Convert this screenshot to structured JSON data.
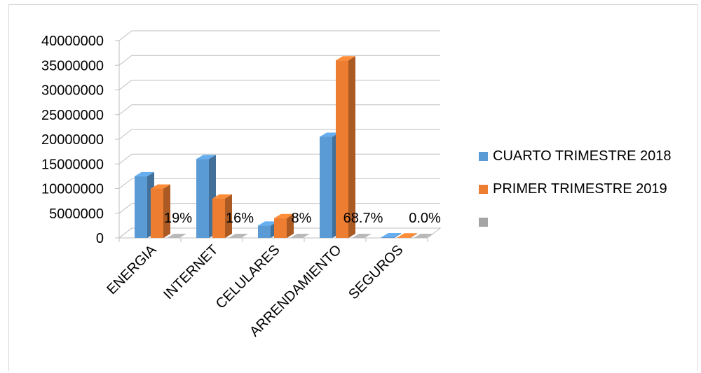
{
  "chart_data": {
    "type": "bar",
    "style": "3d-clustered-column",
    "categories": [
      "ENERGIA",
      "INTERNET",
      "CELULARES",
      "ARRENDAMIENTO",
      "SEGUROS"
    ],
    "series": [
      {
        "name": "CUARTO TRIMESTRE 2018",
        "color": "#5b9bd5",
        "values": [
          12500000,
          16000000,
          2500000,
          20500000,
          150000
        ]
      },
      {
        "name": "PRIMER TRIMESTRE 2019",
        "color": "#ed7d31",
        "values": [
          10000000,
          8000000,
          4000000,
          36000000,
          100000
        ]
      },
      {
        "name": "",
        "color": "#a5a5a5",
        "values": [
          0,
          0,
          0,
          0,
          0
        ]
      }
    ],
    "data_labels": [
      "19%",
      "16%",
      "8%",
      "68.7%",
      "0.0%"
    ],
    "yticks": [
      "0",
      "5000000",
      "10000000",
      "15000000",
      "20000000",
      "25000000",
      "30000000",
      "35000000",
      "40000000"
    ],
    "ylim": [
      0,
      40000000
    ],
    "grid": true,
    "legend_position": "right"
  }
}
